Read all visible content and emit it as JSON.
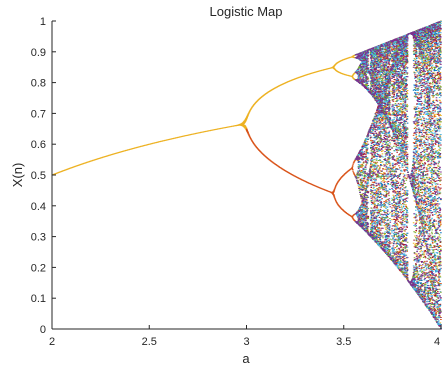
{
  "chart_data": {
    "type": "scatter",
    "title": "Logistic Map",
    "xlabel": "a",
    "ylabel": "X(n)",
    "xlim": [
      2,
      4
    ],
    "ylim": [
      0,
      1
    ],
    "x_ticks": [
      2,
      2.5,
      3,
      3.5,
      4
    ],
    "x_tick_labels": [
      "2",
      "2.5",
      "3",
      "3.5",
      "4"
    ],
    "y_ticks": [
      0,
      0.1,
      0.2,
      0.3,
      0.4,
      0.5,
      0.6,
      0.7,
      0.8,
      0.9,
      1
    ],
    "y_tick_labels": [
      "0",
      "0.1",
      "0.2",
      "0.3",
      "0.4",
      "0.5",
      "0.6",
      "0.7",
      "0.8",
      "0.9",
      "1"
    ],
    "grid": false,
    "a_range": [
      2,
      4
    ],
    "iterate_range": [
      100,
      180
    ],
    "x0": 0.5,
    "series_colors": [
      "#edb120",
      "#d95319",
      "#a2142f",
      "#0072bd",
      "#77ac30",
      "#4dbeee",
      "#7e2f8e"
    ]
  }
}
